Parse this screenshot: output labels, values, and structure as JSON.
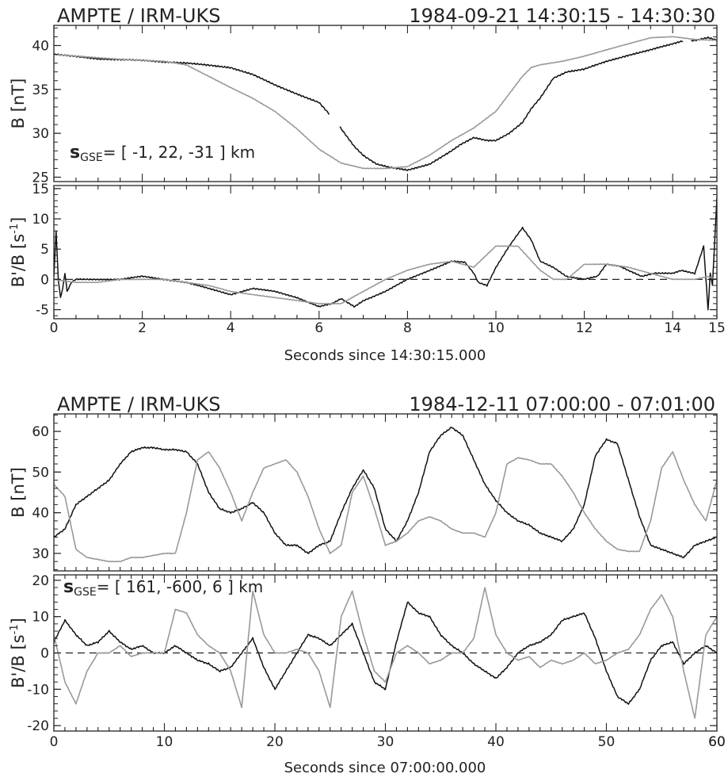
{
  "chart_data": [
    {
      "type": "line",
      "title_left": "AMPTE / IRM-UKS",
      "title_right": "1984-09-21 14:30:15 - 14:30:30",
      "xlabel": "Seconds since 14:30:15.000",
      "xlim": [
        0,
        15
      ],
      "xticks": [
        0,
        2,
        4,
        6,
        8,
        10,
        12,
        14
      ],
      "panels": [
        {
          "ylabel_main": "B",
          "ylabel_unit": "[nT]",
          "ylim": [
            24.5,
            42.3
          ],
          "yticks": [
            25,
            30,
            35,
            40
          ],
          "annotation": {
            "vector": "s",
            "subscript": "GSE",
            "text": "= [ -1, 22, -31 ] km"
          },
          "series": [
            {
              "color": "#111111",
              "x": [
                0,
                1,
                2,
                3,
                4,
                4.5,
                5,
                5.5,
                6,
                6.4,
                6.5,
                6.8,
                7,
                7.3,
                7.6,
                8,
                8.5,
                9,
                9.2,
                9.5,
                9.8,
                10,
                10.3,
                10.6,
                10.8,
                11,
                11.3,
                11.6,
                12,
                12.5,
                13,
                13.5,
                14,
                14.2,
                14.5,
                14.8,
                15
              ],
              "y": [
                39,
                38.5,
                38.3,
                38,
                37.5,
                36.7,
                35.5,
                34.5,
                33.5,
                31.2,
                30.5,
                28.5,
                27.5,
                26.5,
                26.1,
                25.8,
                26.5,
                28,
                28.7,
                29.5,
                29.2,
                29.2,
                30,
                31.2,
                32.8,
                34,
                36.3,
                37,
                37.3,
                38.2,
                38.9,
                39.5,
                40.2,
                40.5,
                40.6,
                40.9,
                40.6
              ],
              "breaks": [
                [
                  6.25,
                  6.45
                ],
                [
                  14.25,
                  14.4
                ]
              ]
            },
            {
              "color": "#999999",
              "x": [
                0,
                1,
                2,
                2.5,
                3,
                3.5,
                4,
                4.5,
                5,
                5.5,
                6,
                6.5,
                7,
                7.5,
                8,
                8.5,
                9,
                9.5,
                10,
                10.3,
                10.6,
                10.8,
                11,
                11.5,
                12,
                12.5,
                13,
                13.5,
                14,
                14.5,
                15
              ],
              "y": [
                39,
                38.6,
                38.3,
                38.2,
                37.8,
                36.5,
                35.2,
                34,
                32.5,
                30.5,
                28.2,
                26.6,
                26,
                26,
                26.2,
                27.5,
                29.2,
                30.6,
                32.5,
                34.5,
                36.5,
                37.5,
                37.8,
                38.2,
                38.8,
                39.5,
                40.2,
                40.9,
                41,
                40.7,
                40.6
              ]
            }
          ]
        },
        {
          "ylabel_main": "B'/B",
          "ylabel_unit": "[s-1]",
          "ylim": [
            -6.5,
            15.5
          ],
          "yticks": [
            -5,
            0,
            5,
            10,
            15
          ],
          "zero_line": true,
          "series": [
            {
              "color": "#111111",
              "x": [
                0,
                0.05,
                0.1,
                0.15,
                0.2,
                0.25,
                0.3,
                0.4,
                0.5,
                1,
                1.5,
                2,
                2.5,
                3,
                3.5,
                4,
                4.5,
                5,
                5.5,
                6,
                6.3,
                6.5,
                6.8,
                7,
                7.5,
                8,
                8.5,
                9,
                9.3,
                9.5,
                9.6,
                9.8,
                10,
                10.3,
                10.6,
                10.8,
                11,
                11.3,
                11.6,
                12,
                12.3,
                12.5,
                12.8,
                13,
                13.3,
                13.6,
                14,
                14.2,
                14.5,
                14.7,
                14.8,
                14.85,
                14.9,
                15
              ],
              "y": [
                0.5,
                8,
                0,
                -3,
                -1.5,
                1,
                -2,
                -0.5,
                0,
                0,
                0,
                0.5,
                0,
                -0.5,
                -1.5,
                -2.5,
                -1.5,
                -2,
                -3,
                -4.5,
                -4,
                -3.2,
                -4.5,
                -3.5,
                -2,
                0,
                1.5,
                3,
                2.8,
                1,
                -0.5,
                -1,
                2,
                5.5,
                8.5,
                6.5,
                3,
                2,
                0.5,
                0,
                0.5,
                2.5,
                2.2,
                1.5,
                0.5,
                1,
                1,
                1.5,
                1,
                5.5,
                -5,
                1,
                -1,
                13.5
              ]
            },
            {
              "color": "#999999",
              "x": [
                0,
                0.5,
                1,
                1.5,
                2,
                2.5,
                3,
                3.5,
                4,
                4.5,
                5,
                5.5,
                6,
                6.5,
                7,
                7.5,
                8,
                8.5,
                9,
                9.5,
                10,
                10.5,
                11,
                11.3,
                11.6,
                12,
                12.5,
                13,
                13.5,
                14,
                14.5,
                14.8,
                15
              ],
              "y": [
                0,
                -0.5,
                -0.5,
                0,
                0,
                0,
                -0.5,
                -1,
                -2,
                -2.5,
                -3,
                -3.5,
                -4,
                -4,
                -2,
                0,
                1.5,
                2.5,
                3,
                2,
                5.5,
                5.5,
                1.5,
                0,
                0,
                2.5,
                2.5,
                2,
                1,
                0,
                0,
                0.5,
                0
              ]
            }
          ]
        }
      ]
    },
    {
      "type": "line",
      "title_left": "AMPTE / IRM-UKS",
      "title_right": "1984-12-11 07:00:00 - 07:01:00",
      "xlabel": "Seconds since 07:00:00.000",
      "xlim": [
        0,
        60
      ],
      "xticks": [
        0,
        10,
        20,
        30,
        40,
        50,
        60
      ],
      "panels": [
        {
          "ylabel_main": "B",
          "ylabel_unit": "[nT]",
          "ylim": [
            25.7,
            64.3
          ],
          "yticks": [
            30,
            40,
            50,
            60
          ],
          "series": [
            {
              "color": "#111111",
              "x": [
                0,
                1,
                2,
                3,
                4,
                5,
                6,
                7,
                8,
                9,
                10,
                11,
                12,
                13,
                14,
                15,
                16,
                17,
                18,
                19,
                20,
                21,
                22,
                23,
                24,
                25,
                26,
                27,
                28,
                29,
                30,
                31,
                32,
                33,
                34,
                35,
                36,
                37,
                38,
                39,
                40,
                41,
                42,
                43,
                44,
                45,
                46,
                47,
                48,
                49,
                50,
                51,
                52,
                53,
                54,
                55,
                56,
                57,
                58,
                59,
                60
              ],
              "y": [
                34,
                36,
                42,
                44,
                46,
                48,
                52,
                55,
                56,
                56,
                55.5,
                55.5,
                55,
                52,
                45,
                41,
                40,
                41,
                42.5,
                40,
                35,
                32,
                32,
                30,
                32,
                33,
                40,
                46,
                50.5,
                46,
                36,
                33,
                38,
                45,
                55,
                59,
                61,
                59,
                53,
                47,
                43,
                40,
                38,
                37,
                35,
                34,
                33,
                36,
                42,
                54,
                58,
                57,
                48,
                39,
                32,
                31,
                30,
                29,
                32,
                33,
                34
              ]
            },
            {
              "color": "#999999",
              "x": [
                0,
                1,
                2,
                3,
                4,
                5,
                6,
                7,
                8,
                9,
                10,
                11,
                12,
                13,
                14,
                15,
                16,
                17,
                18,
                19,
                20,
                21,
                22,
                23,
                24,
                25,
                26,
                27,
                28,
                29,
                30,
                31,
                32,
                33,
                34,
                35,
                36,
                37,
                38,
                39,
                40,
                41,
                42,
                43,
                44,
                45,
                46,
                47,
                48,
                49,
                50,
                51,
                52,
                53,
                54,
                55,
                56,
                57,
                58,
                59,
                60
              ],
              "y": [
                47,
                44,
                31,
                29,
                28.5,
                28,
                28,
                29,
                29,
                29.5,
                30,
                30,
                40,
                53,
                55,
                51,
                45,
                38,
                45,
                51,
                52,
                53,
                50,
                44,
                36,
                30,
                32,
                45,
                49,
                41,
                32,
                33,
                35,
                38,
                39,
                38,
                36,
                35,
                35,
                34,
                40,
                52,
                53.5,
                53,
                52,
                52,
                49,
                45,
                40,
                36,
                33,
                31,
                30.5,
                30.5,
                38,
                51,
                55,
                48,
                42,
                38,
                48
              ]
            }
          ]
        },
        {
          "ylabel_main": "B'/B",
          "ylabel_unit": "[s-1]",
          "ylim": [
            -21.5,
            21.5
          ],
          "yticks": [
            -20,
            -10,
            0,
            10,
            20
          ],
          "zero_line": true,
          "annotation": {
            "vector": "s",
            "subscript": "GSE",
            "text": "= [ 161, -600, 6 ] km"
          },
          "series": [
            {
              "color": "#111111",
              "x": [
                0,
                1,
                2,
                3,
                4,
                5,
                6,
                7,
                8,
                9,
                10,
                11,
                12,
                13,
                14,
                15,
                16,
                17,
                18,
                19,
                20,
                21,
                22,
                23,
                24,
                25,
                26,
                27,
                28,
                29,
                30,
                31,
                32,
                33,
                34,
                35,
                36,
                37,
                38,
                39,
                40,
                41,
                42,
                43,
                44,
                45,
                46,
                47,
                48,
                49,
                50,
                51,
                52,
                53,
                54,
                55,
                56,
                57,
                58,
                59,
                60
              ],
              "y": [
                3,
                9,
                5,
                2,
                3,
                6,
                3,
                1,
                2,
                0,
                0,
                2,
                0,
                -2,
                -3,
                -5,
                -4,
                0,
                4,
                -4,
                -10,
                -5,
                0,
                5,
                4,
                2,
                5,
                8,
                0,
                -8,
                -10,
                3,
                14,
                11,
                10,
                5,
                2,
                0,
                -3,
                -5,
                -7,
                -4,
                0,
                2,
                3,
                5,
                9,
                10,
                11,
                4,
                -5,
                -12,
                -14,
                -10,
                -2,
                2,
                3,
                -3,
                0,
                2,
                0
              ]
            },
            {
              "color": "#999999",
              "x": [
                0,
                1,
                2,
                3,
                4,
                5,
                6,
                7,
                8,
                9,
                10,
                11,
                12,
                13,
                14,
                15,
                16,
                17,
                18,
                19,
                20,
                21,
                22,
                23,
                24,
                25,
                26,
                27,
                28,
                29,
                30,
                31,
                32,
                33,
                34,
                35,
                36,
                37,
                38,
                39,
                40,
                41,
                42,
                43,
                44,
                45,
                46,
                47,
                48,
                49,
                50,
                51,
                52,
                53,
                54,
                55,
                56,
                57,
                58,
                59,
                60
              ],
              "y": [
                5,
                -8,
                -14,
                -5,
                0,
                0,
                2,
                -1,
                0,
                0,
                0,
                12,
                11,
                5,
                2,
                0,
                -5,
                -15,
                17,
                5,
                0,
                0,
                1,
                0,
                -5,
                -15,
                10,
                17,
                5,
                -5,
                -8,
                0,
                2,
                0,
                -3,
                -2,
                0,
                0,
                4,
                18,
                5,
                0,
                -2,
                -1,
                -4,
                -2,
                -3,
                -2,
                0,
                -3,
                -2,
                0,
                1,
                5,
                12,
                16,
                10,
                -5,
                -18,
                5,
                10
              ]
            }
          ]
        }
      ]
    }
  ]
}
